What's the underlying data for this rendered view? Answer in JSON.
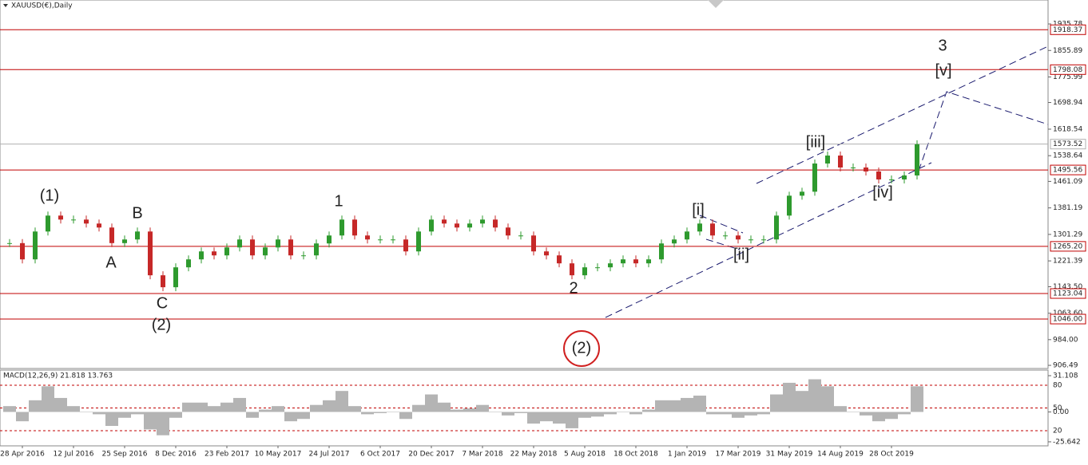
{
  "chart_data": {
    "type": "candles",
    "title": "XAUUSD(€),Daily",
    "up_color": "#2e9a2e",
    "down_color": "#c62828",
    "categories": [
      null,
      "28 Apr 2016",
      null,
      null,
      null,
      "12 Jul 2016",
      null,
      null,
      null,
      "25 Sep 2016",
      null,
      null,
      null,
      "8 Dec 2016",
      null,
      null,
      null,
      "23 Feb 2017",
      null,
      null,
      null,
      "10 May 2017",
      null,
      null,
      null,
      "24 Jul 2017",
      null,
      null,
      null,
      "6 Oct 2017",
      null,
      null,
      null,
      "20 Dec 2017",
      null,
      null,
      null,
      "7 Mar 2018",
      null,
      null,
      null,
      "22 May 2018",
      null,
      null,
      null,
      "5 Aug 2018",
      null,
      null,
      null,
      "18 Oct 2018",
      null,
      null,
      null,
      "1 Jan 2019",
      null,
      null,
      null,
      "17 Mar 2019",
      null,
      null,
      null,
      "31 May 2019",
      null,
      null,
      null,
      "14 Aug 2019",
      null,
      null,
      null,
      "28 Oct 2019",
      null,
      null
    ],
    "values": [
      1275,
      1226,
      1310,
      1358,
      1346,
      1346,
      1334,
      1322,
      1275,
      1286,
      1310,
      1178,
      1142,
      1202,
      1226,
      1250,
      1238,
      1262,
      1286,
      1238,
      1262,
      1286,
      1238,
      1238,
      1274,
      1298,
      1346,
      1298,
      1286,
      1286,
      1286,
      1250,
      1310,
      1346,
      1334,
      1322,
      1334,
      1346,
      1322,
      1298,
      1298,
      1250,
      1238,
      1214,
      1178,
      1202,
      1202,
      1214,
      1226,
      1214,
      1226,
      1274,
      1286,
      1310,
      1334,
      1298,
      1298,
      1286,
      1286,
      1286,
      1358,
      1418,
      1430,
      1515,
      1539,
      1503,
      1503,
      1491,
      1467,
      1467,
      1479,
      1573
    ],
    "ylim": [
      897,
      2008
    ],
    "yticks": [
      1935.78,
      1855.89,
      1775.99,
      1698.94,
      1618.54,
      1538.64,
      1461.09,
      1381.19,
      1301.29,
      1221.39,
      {
        "value": 1143.5,
        "label": "1143.50"
      },
      {
        "value": 1063.6,
        "label": "1063.60"
      },
      {
        "value": 984,
        "label": "984.00"
      },
      906.49
    ],
    "levels": [
      {
        "value": 1918.37,
        "label": "1918.37",
        "color": "#c00000"
      },
      {
        "value": 1798.08,
        "label": "1798.08",
        "color": "#c00000"
      },
      {
        "value": 1573.52,
        "label": "1573.52",
        "color": "#b0b0b0"
      },
      {
        "value": 1495.56,
        "label": "1495.56",
        "color": "#c00000"
      },
      {
        "value": 1265.2,
        "label": "1265.20",
        "color": "#c00000"
      },
      {
        "value": 1123.04,
        "label": "1123.04",
        "color": "#c00000"
      },
      {
        "value": 1046,
        "label": "1046.00",
        "color": "#c00000"
      }
    ],
    "annotations": [
      {
        "text": "(1)",
        "color": "#1010c0"
      },
      {
        "text": "A",
        "color": "#d02020"
      },
      {
        "text": "B",
        "color": "#d02020"
      },
      {
        "text": "C",
        "color": "#d02020"
      },
      {
        "text": "(2)",
        "color": "#1010c0"
      },
      {
        "text": "1",
        "color": "#d02020"
      },
      {
        "text": "2",
        "color": "#d02020"
      },
      {
        "text": "(2)",
        "color": "#1010c0"
      },
      {
        "text": "[i]",
        "color": "#3a8a3a"
      },
      {
        "text": "[ii]",
        "color": "#3a8a3a"
      },
      {
        "text": "[iii]",
        "color": "#3a8a3a"
      },
      {
        "text": "[iv]",
        "color": "#3a8a3a"
      },
      {
        "text": "[v]",
        "color": "#3a8a3a"
      },
      {
        "text": "3",
        "color": "#d02020"
      }
    ],
    "macd": {
      "label": "MACD(12,26,9) 21.818 13.763",
      "color": "#b4b4b4",
      "values": [
        5,
        -8,
        10,
        22,
        12,
        5,
        0,
        -2,
        -12,
        -5,
        -2,
        -15,
        -20,
        -5,
        8,
        8,
        5,
        8,
        12,
        -5,
        2,
        5,
        -8,
        -6,
        6,
        10,
        18,
        5,
        -2,
        -1,
        0,
        -6,
        6,
        15,
        8,
        2,
        3,
        6,
        0,
        -3,
        -1,
        -10,
        -8,
        -10,
        -14,
        -5,
        -4,
        -2,
        0,
        -2,
        2,
        10,
        10,
        12,
        14,
        -2,
        -2,
        -5,
        -3,
        -2,
        15,
        25,
        18,
        28,
        22,
        5,
        0,
        -3,
        -8,
        -6,
        -2,
        22
      ],
      "ylim": [
        -29.1,
        35.9
      ],
      "yticks": [
        31.108,
        {
          "value": 0,
          "label": "0.00"
        },
        -25.642
      ],
      "y2lim": [
        0,
        100
      ],
      "y2ticks": [
        80,
        50,
        20
      ]
    }
  }
}
